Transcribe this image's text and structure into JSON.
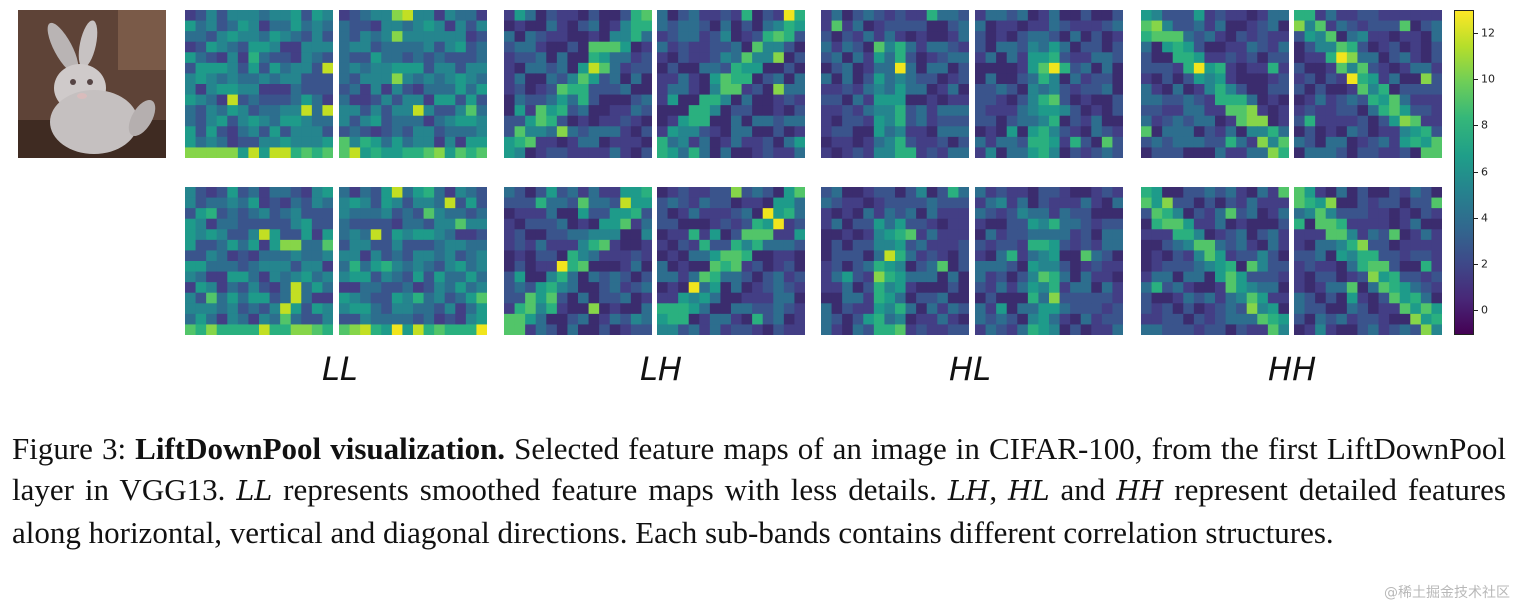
{
  "figure": {
    "band_labels": [
      "LL",
      "LH",
      "HL",
      "HH"
    ],
    "colorbar": {
      "colormap": "viridis",
      "min": -1,
      "max": 13,
      "ticks": [
        "0",
        "2",
        "4",
        "6",
        "8",
        "10",
        "12"
      ],
      "tick_values": [
        0,
        2,
        4,
        6,
        8,
        10,
        12
      ]
    },
    "input_image": "rabbit (CIFAR-100)"
  },
  "caption": {
    "prefix": "Figure 3: ",
    "title": "LiftDownPool visualization.",
    "s1": " Selected feature maps of an image in CIFAR-100, from the first LiftDownPool layer in VGG13. ",
    "ll": "LL",
    "s2": " represents smoothed feature maps with less details. ",
    "lh": "LH",
    "s3": ", ",
    "hl": "HL",
    "s4": " and ",
    "hh": "HH",
    "s5": " represent detailed features along horizontal, vertical and diagonal directions. Each sub-bands contains different correlation structures."
  },
  "watermark": "@稀土掘金技术社区"
}
